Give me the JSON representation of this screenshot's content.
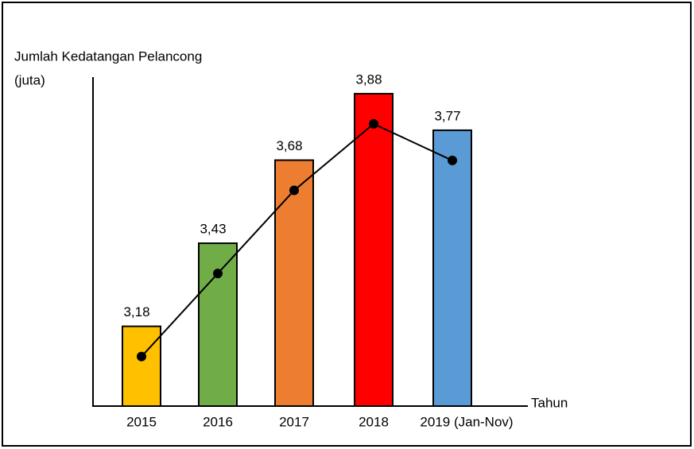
{
  "chart_data": {
    "type": "bar",
    "ylabel": [
      "Jumlah Kedatangan Pelancong",
      "(juta)"
    ],
    "xlabel": "Tahun",
    "categories": [
      "2015",
      "2016",
      "2017",
      "2018",
      "2019 (Jan-Nov)"
    ],
    "values": [
      3.18,
      3.43,
      3.68,
      3.88,
      3.77
    ],
    "value_labels": [
      "3,18",
      "3,43",
      "3,68",
      "3,88",
      "3,77"
    ],
    "colors": [
      "#ffc000",
      "#70ad47",
      "#ed7d31",
      "#ff0000",
      "#5b9bd5"
    ],
    "ylim": [
      2.94,
      3.93
    ],
    "line_overlay": true,
    "line_color": "#000000"
  }
}
